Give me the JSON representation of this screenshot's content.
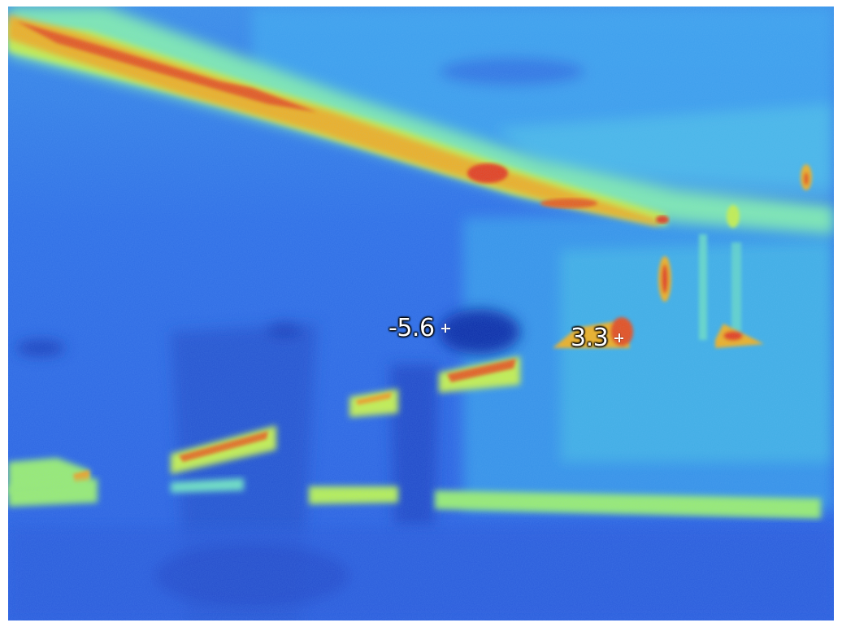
{
  "image": {
    "description_kind": "thermal-infrared-camera-view",
    "palette": {
      "cold_deep": "#0f2fa8",
      "cold": "#2f68e6",
      "cool": "#3ea0f0",
      "mid": "#4fd3e0",
      "warm": "#b8ef52",
      "hot": "#f0c020",
      "hottest": "#e8401a"
    }
  },
  "readouts": {
    "min_label": "-5.6",
    "max_label": "3.3"
  }
}
